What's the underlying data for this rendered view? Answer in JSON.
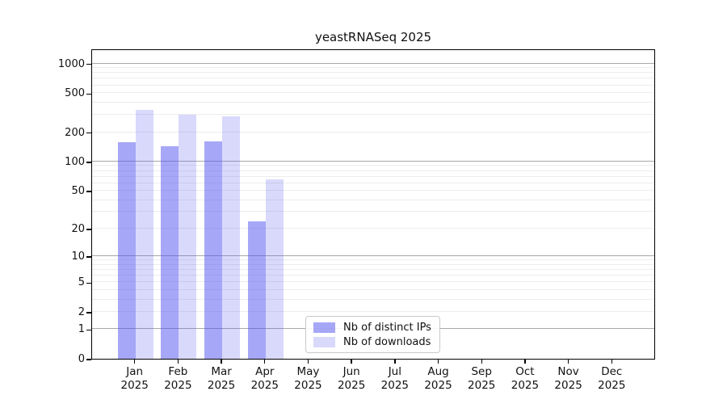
{
  "title": "yeastRNASeq 2025",
  "chart_data": {
    "type": "bar",
    "title": "yeastRNASeq 2025",
    "categories": [
      "Jan",
      "Feb",
      "Mar",
      "Apr",
      "May",
      "Jun",
      "Jul",
      "Aug",
      "Sep",
      "Oct",
      "Nov",
      "Dec"
    ],
    "year_label": "2025",
    "series": [
      {
        "name": "Nb of distinct IPs",
        "color": "#5050F0",
        "alpha": 0.5,
        "values": [
          158,
          143,
          162,
          24,
          0,
          0,
          0,
          0,
          0,
          0,
          0,
          0
        ]
      },
      {
        "name": "Nb of downloads",
        "color": "#5050F0",
        "alpha": 0.22,
        "values": [
          336,
          303,
          289,
          65,
          0,
          0,
          0,
          0,
          0,
          0,
          0,
          0
        ]
      }
    ],
    "xlabel": "",
    "ylabel": "",
    "yscale": "log1p",
    "yticks": [
      0,
      1,
      2,
      5,
      10,
      20,
      50,
      100,
      200,
      500,
      1000
    ],
    "ylim": [
      0,
      1422
    ],
    "grid": "horizontal",
    "legend_position": "inside-bottom-center",
    "colors": {
      "grid_minor": "#ececec",
      "grid_major": "#a8a8a8",
      "axis": "#000000",
      "text": "#111111"
    }
  }
}
